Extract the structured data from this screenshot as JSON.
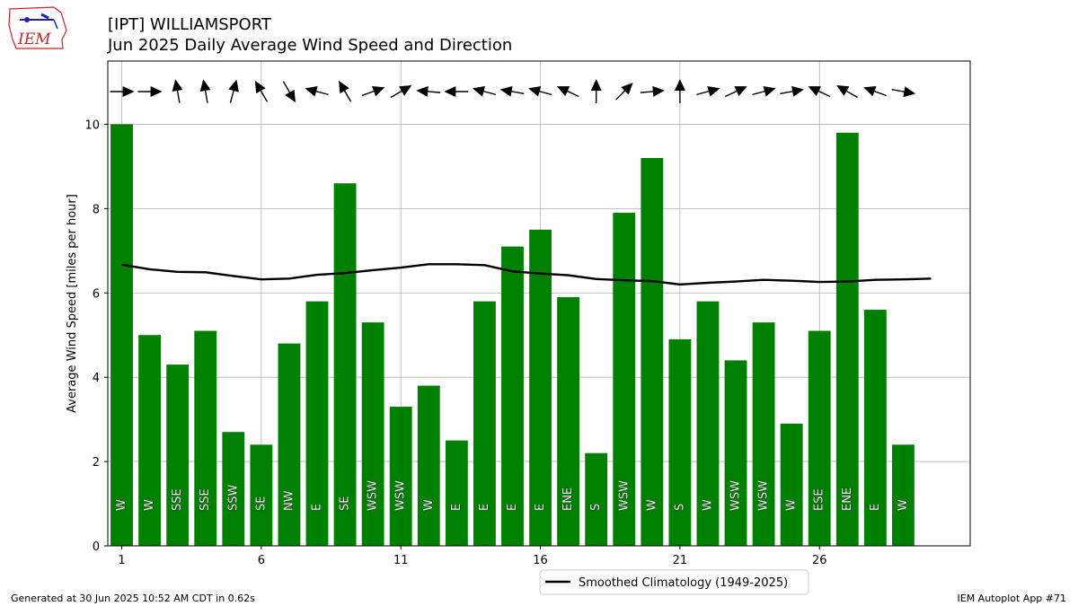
{
  "title_line1": "[IPT] WILLIAMSPORT",
  "title_line2": "Jun 2025 Daily Average Wind Speed and Direction",
  "footer_left": "Generated at 30 Jun 2025 10:52 AM CDT in 0.62s",
  "footer_right": "IEM Autoplot App #71",
  "logo_text": "IEM",
  "colors": {
    "bar": "#008000",
    "climo": "#000000",
    "grid": "#b0b0b0",
    "logo": "#cc2222"
  },
  "chart_data": {
    "type": "bar",
    "ylabel": "Average Wind Speed [miles per hour]",
    "xlabel": "",
    "ylim": [
      0,
      11.5
    ],
    "xlim": [
      0.5,
      31.4
    ],
    "yticks": [
      0,
      2,
      4,
      6,
      8,
      10
    ],
    "xticks": [
      1,
      6,
      11,
      16,
      21,
      26
    ],
    "grid": true,
    "legend_position": "bottom-center",
    "days": [
      1,
      2,
      3,
      4,
      5,
      6,
      7,
      8,
      9,
      10,
      11,
      12,
      13,
      14,
      15,
      16,
      17,
      18,
      19,
      20,
      21,
      22,
      23,
      24,
      25,
      26,
      27,
      28,
      29
    ],
    "series": [
      {
        "values": [
          10.0,
          5.0,
          4.3,
          5.1,
          2.7,
          2.4,
          4.8,
          5.8,
          8.6,
          5.3,
          3.3,
          3.8,
          2.5,
          5.8,
          7.1,
          7.5,
          5.9,
          2.2,
          7.9,
          9.2,
          4.9,
          5.8,
          4.4,
          5.3,
          2.9,
          5.1,
          9.8,
          5.6,
          2.4
        ],
        "directions": [
          "W",
          "W",
          "SSE",
          "SSE",
          "SSW",
          "SE",
          "NW",
          "E",
          "SE",
          "WSW",
          "WSW",
          "W",
          "E",
          "E",
          "E",
          "E",
          "ENE",
          "S",
          "WSW",
          "W",
          "S",
          "W",
          "WSW",
          "WSW",
          "W",
          "ESE",
          "ENE",
          "E",
          "W"
        ],
        "arrow_headings_deg": [
          90,
          90,
          -10,
          -10,
          15,
          -30,
          150,
          -75,
          -30,
          70,
          60,
          -85,
          -90,
          -75,
          -80,
          -75,
          -65,
          0,
          45,
          85,
          0,
          75,
          65,
          75,
          80,
          -65,
          -60,
          -70,
          100
        ]
      },
      {
        "name": "Smoothed Climatology (1949-2025)",
        "x": [
          1,
          2,
          3,
          4,
          5,
          6,
          7,
          8,
          9,
          10,
          11,
          12,
          13,
          14,
          15,
          16,
          17,
          18,
          19,
          20,
          21,
          22,
          23,
          24,
          25,
          26,
          27,
          28,
          29,
          30
        ],
        "values": [
          6.67,
          6.56,
          6.5,
          6.49,
          6.4,
          6.32,
          6.34,
          6.43,
          6.47,
          6.54,
          6.6,
          6.68,
          6.68,
          6.66,
          6.51,
          6.46,
          6.42,
          6.33,
          6.3,
          6.28,
          6.2,
          6.24,
          6.27,
          6.31,
          6.29,
          6.26,
          6.27,
          6.31,
          6.32,
          6.34
        ]
      }
    ]
  }
}
